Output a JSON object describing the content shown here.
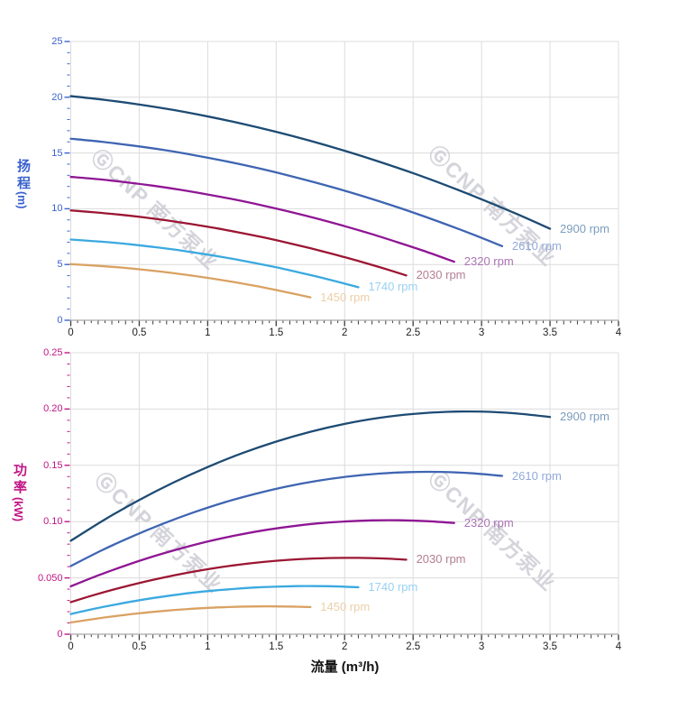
{
  "watermark": {
    "text": "ⒼCNP 南方泵业",
    "color": "#c9c9d2"
  },
  "chart_data": [
    {
      "type": "line",
      "title": "",
      "y_axis": {
        "title": "扬程",
        "unit": "(m)",
        "color": "#3a62cf",
        "range": [
          0,
          25
        ],
        "tick_values": [
          0,
          5,
          10,
          15,
          20,
          25
        ],
        "tick_labels": [
          "0",
          "5",
          "10",
          "15",
          "20",
          "25"
        ]
      },
      "x_axis": {
        "title": "",
        "color": "#1f1f1f",
        "range": [
          0,
          4
        ],
        "tick_values": [
          0,
          0.5,
          1,
          1.5,
          2,
          2.5,
          3,
          3.5,
          4
        ],
        "tick_labels": [
          "0",
          "0.5",
          "1",
          "1.5",
          "2",
          "2.5",
          "3",
          "3.5",
          "4"
        ]
      },
      "grid": true,
      "legend_position": "end-of-line-labels",
      "series": [
        {
          "name": "2900 rpm",
          "color": "#1d4b73",
          "label_color": "#7b9dbe",
          "x": [
            0,
            0.25,
            0.5,
            0.75,
            1,
            1.25,
            1.5,
            1.75,
            2,
            2.25,
            2.5,
            2.75,
            3,
            3.25,
            3.5
          ],
          "y": [
            20.1,
            19.76,
            19.35,
            18.86,
            18.28,
            17.63,
            16.9,
            16.09,
            15.2,
            14.23,
            13.19,
            12.06,
            10.85,
            9.57,
            8.21
          ]
        },
        {
          "name": "2610 rpm",
          "color": "#3f65b2",
          "label_color": "#92a9da",
          "x": [
            0,
            0.225,
            0.45,
            0.675,
            0.9,
            1.125,
            1.35,
            1.575,
            1.8,
            2.025,
            2.25,
            2.475,
            2.7,
            2.925,
            3.15
          ],
          "y": [
            16.28,
            16.01,
            15.67,
            15.28,
            14.81,
            14.28,
            13.69,
            13.03,
            12.31,
            11.53,
            10.68,
            9.77,
            8.79,
            7.75,
            6.65
          ]
        },
        {
          "name": "2320 rpm",
          "color": "#8f1694",
          "label_color": "#ab74b4",
          "x": [
            0,
            0.2,
            0.4,
            0.6,
            0.8,
            1,
            1.2,
            1.4,
            1.6,
            1.8,
            2,
            2.2,
            2.4,
            2.6,
            2.8
          ],
          "y": [
            12.86,
            12.65,
            12.38,
            12.07,
            11.7,
            11.28,
            10.82,
            10.3,
            9.73,
            9.11,
            8.44,
            7.72,
            6.94,
            6.13,
            5.25
          ]
        },
        {
          "name": "2030 rpm",
          "color": "#9b1633",
          "label_color": "#b37e92",
          "x": [
            0,
            0.175,
            0.35,
            0.525,
            0.7,
            0.875,
            1.05,
            1.225,
            1.4,
            1.575,
            1.75,
            1.925,
            2.1,
            2.275,
            2.45
          ],
          "y": [
            9.85,
            9.68,
            9.48,
            9.24,
            8.96,
            8.64,
            8.28,
            7.88,
            7.45,
            6.97,
            6.46,
            5.91,
            5.32,
            4.69,
            4.02
          ]
        },
        {
          "name": "1740 rpm",
          "color": "#3aa9e0",
          "label_color": "#97d1f2",
          "x": [
            0,
            0.15,
            0.3,
            0.45,
            0.6,
            0.75,
            0.9,
            1.05,
            1.2,
            1.35,
            1.5,
            1.65,
            1.8,
            1.95,
            2.1
          ],
          "y": [
            7.24,
            7.11,
            6.97,
            6.79,
            6.58,
            6.35,
            6.08,
            5.79,
            5.47,
            5.12,
            4.75,
            4.34,
            3.91,
            3.45,
            2.96
          ]
        },
        {
          "name": "1450 rpm",
          "color": "#d9a263",
          "label_color": "#eccfa8",
          "x": [
            0,
            0.125,
            0.25,
            0.375,
            0.5,
            0.625,
            0.75,
            0.875,
            1,
            1.125,
            1.25,
            1.375,
            1.5,
            1.625,
            1.75
          ],
          "y": [
            5.03,
            4.94,
            4.84,
            4.72,
            4.57,
            4.41,
            4.23,
            4.02,
            3.8,
            3.56,
            3.3,
            3.02,
            2.71,
            2.39,
            2.05
          ]
        }
      ]
    },
    {
      "type": "line",
      "title": "",
      "y_axis": {
        "title": "功率",
        "unit": "(kW)",
        "color": "#c01585",
        "range": [
          0,
          0.25
        ],
        "tick_values": [
          0,
          0.05,
          0.1,
          0.15,
          0.2,
          0.25
        ],
        "tick_labels": [
          "0",
          "0.050",
          "0.10",
          "0.15",
          "0.20",
          "0.25"
        ]
      },
      "x_axis": {
        "title": "流量 (m³/h)",
        "color": "#1f1f1f",
        "range": [
          0,
          4
        ],
        "tick_values": [
          0,
          0.5,
          1,
          1.5,
          2,
          2.5,
          3,
          3.5,
          4
        ],
        "tick_labels": [
          "0",
          "0.5",
          "1",
          "1.5",
          "2",
          "2.5",
          "3",
          "3.5",
          "4"
        ]
      },
      "grid": true,
      "legend_position": "end-of-line-labels",
      "series": [
        {
          "name": "2900 rpm",
          "color": "#1d4b73",
          "label_color": "#7b9dbe",
          "x": [
            0,
            0.25,
            0.5,
            0.75,
            1,
            1.25,
            1.5,
            1.75,
            2,
            2.25,
            2.5,
            2.75,
            3,
            3.25,
            3.5
          ],
          "y": [
            0.083,
            0.102,
            0.1192,
            0.1347,
            0.1485,
            0.1607,
            0.1711,
            0.1798,
            0.1868,
            0.1921,
            0.1956,
            0.1975,
            0.1977,
            0.1961,
            0.1929
          ]
        },
        {
          "name": "2610 rpm",
          "color": "#3f65b2",
          "label_color": "#92a9da",
          "x": [
            0,
            0.225,
            0.45,
            0.675,
            0.9,
            1.125,
            1.35,
            1.575,
            1.8,
            2.025,
            2.25,
            2.475,
            2.7,
            2.925,
            3.15
          ],
          "y": [
            0.0605,
            0.0744,
            0.0869,
            0.0982,
            0.1083,
            0.1172,
            0.1247,
            0.1311,
            0.1362,
            0.14,
            0.1426,
            0.144,
            0.1441,
            0.143,
            0.1406
          ]
        },
        {
          "name": "2320 rpm",
          "color": "#8f1694",
          "label_color": "#ab74b4",
          "x": [
            0,
            0.2,
            0.4,
            0.6,
            0.8,
            1,
            1.2,
            1.4,
            1.6,
            1.8,
            2,
            2.2,
            2.4,
            2.6,
            2.8
          ],
          "y": [
            0.0425,
            0.0522,
            0.061,
            0.069,
            0.076,
            0.0823,
            0.0876,
            0.0921,
            0.0956,
            0.0984,
            0.1001,
            0.1011,
            0.1012,
            0.1004,
            0.0988
          ]
        },
        {
          "name": "2030 rpm",
          "color": "#9b1633",
          "label_color": "#b37e92",
          "x": [
            0,
            0.175,
            0.35,
            0.525,
            0.7,
            0.875,
            1.05,
            1.225,
            1.4,
            1.575,
            1.75,
            1.925,
            2.1,
            2.275,
            2.45
          ],
          "y": [
            0.0285,
            0.035,
            0.0409,
            0.0462,
            0.0509,
            0.0551,
            0.0587,
            0.0617,
            0.0641,
            0.0659,
            0.0671,
            0.0677,
            0.0678,
            0.0673,
            0.0662
          ]
        },
        {
          "name": "1740 rpm",
          "color": "#3aa9e0",
          "label_color": "#97d1f2",
          "x": [
            0,
            0.15,
            0.3,
            0.45,
            0.6,
            0.75,
            0.9,
            1.05,
            1.2,
            1.35,
            1.5,
            1.65,
            1.8,
            1.95,
            2.1
          ],
          "y": [
            0.0179,
            0.022,
            0.0257,
            0.0291,
            0.0321,
            0.0347,
            0.037,
            0.0388,
            0.0403,
            0.0415,
            0.0422,
            0.0427,
            0.0427,
            0.0424,
            0.0417
          ]
        },
        {
          "name": "1450 rpm",
          "color": "#d9a263",
          "label_color": "#eccfa8",
          "x": [
            0,
            0.125,
            0.25,
            0.375,
            0.5,
            0.625,
            0.75,
            0.875,
            1,
            1.125,
            1.25,
            1.375,
            1.5,
            1.625,
            1.75
          ],
          "y": [
            0.0104,
            0.0127,
            0.0149,
            0.0168,
            0.0186,
            0.0201,
            0.0214,
            0.0225,
            0.0234,
            0.024,
            0.0245,
            0.0247,
            0.0247,
            0.0245,
            0.0241
          ]
        }
      ]
    }
  ]
}
